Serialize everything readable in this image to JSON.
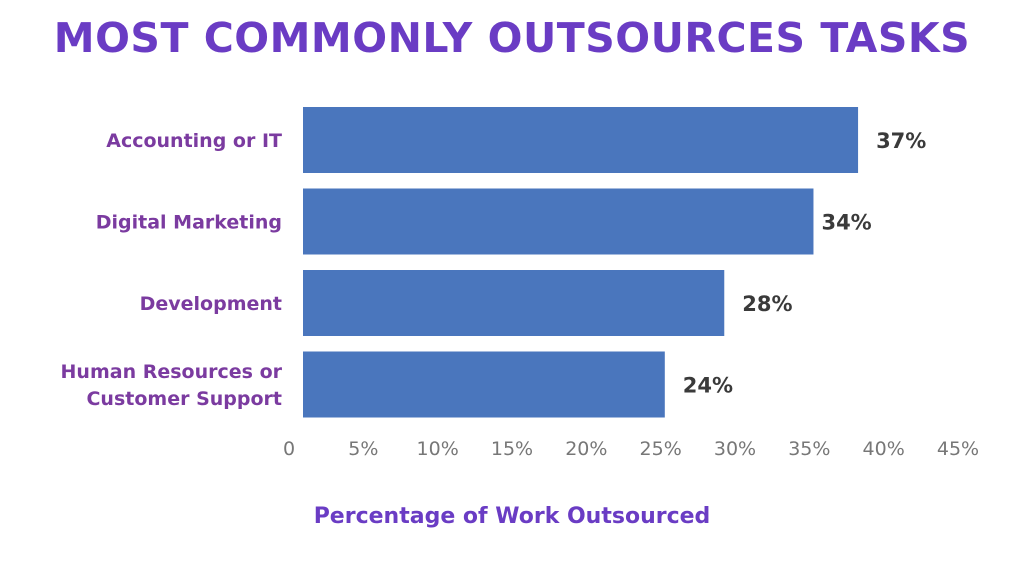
{
  "chart_data": {
    "type": "bar",
    "orientation": "horizontal",
    "title": "MOST COMMONLY OUTSOURCES TASKS",
    "xlabel": "Percentage of Work Outsourced",
    "ylabel": "",
    "categories": [
      [
        "Accounting or IT"
      ],
      [
        "Digital Marketing"
      ],
      [
        "Development"
      ],
      [
        "Human Resources or",
        "Customer Support"
      ]
    ],
    "values": [
      37,
      34,
      28,
      24
    ],
    "value_labels": [
      "37%",
      "34%",
      "28%",
      "24%"
    ],
    "xlim": [
      0,
      45
    ],
    "x_ticks": [
      0,
      5,
      10,
      15,
      20,
      25,
      30,
      35,
      40,
      45
    ],
    "x_tick_labels": [
      "0",
      "5%",
      "10%",
      "15%",
      "20%",
      "25%",
      "30%",
      "35%",
      "40%",
      "45%"
    ],
    "grid": false,
    "legend": "none",
    "colors": {
      "bar": "#4a76bd",
      "title": "#6a3cc4",
      "category_label": "#7b3ba0",
      "value_label": "#3a3a3a",
      "tick": "#777777"
    }
  }
}
